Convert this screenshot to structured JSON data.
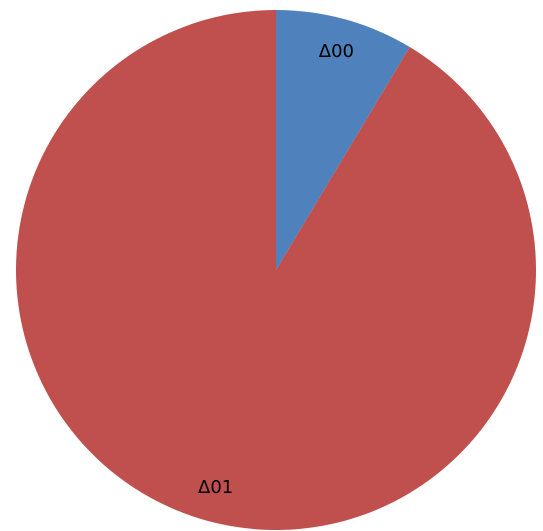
{
  "chart_data": {
    "type": "pie",
    "categories": [
      "Δ00",
      "Δ01"
    ],
    "values": [
      8.6,
      91.4
    ],
    "colors": [
      "#4f81bd",
      "#c0504d"
    ]
  }
}
